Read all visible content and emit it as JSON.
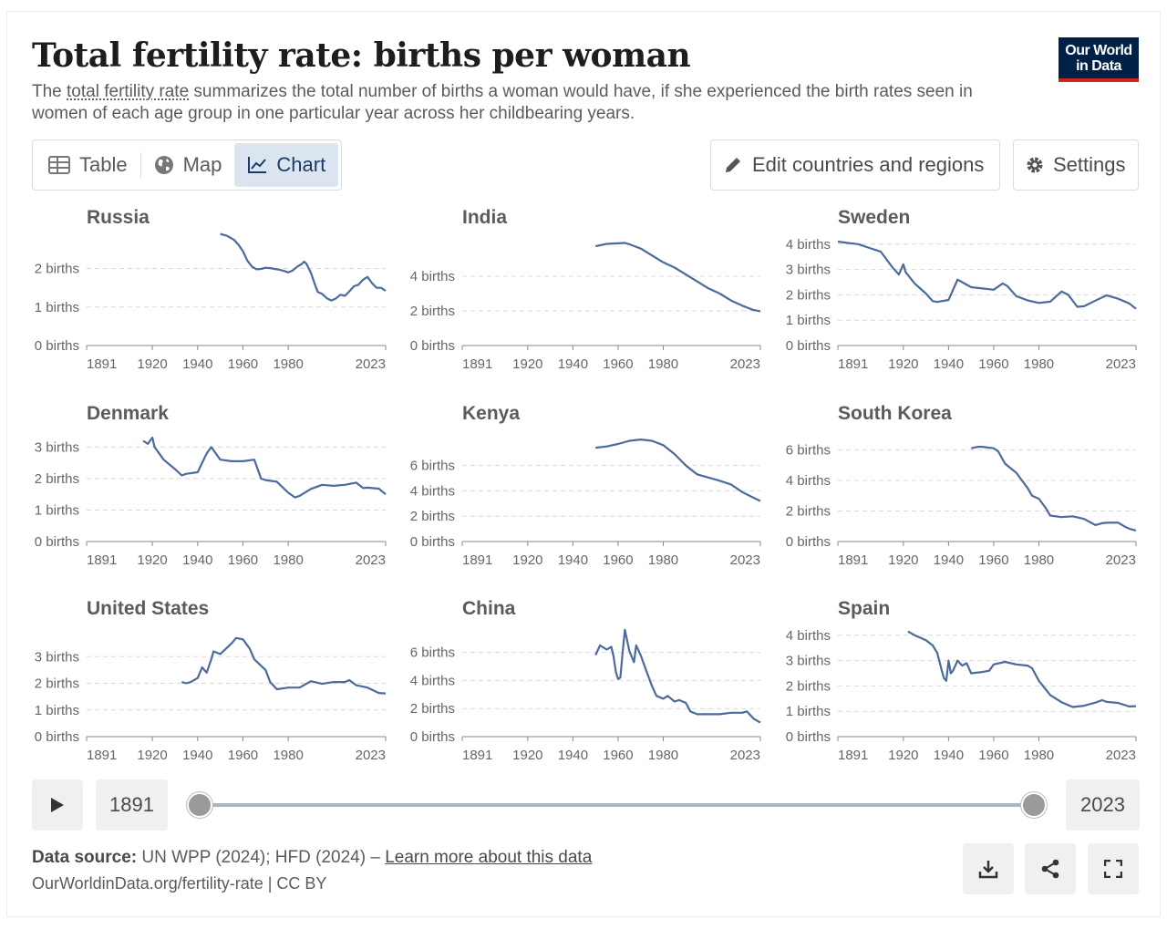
{
  "header": {
    "title": "Total fertility rate: births per woman",
    "subtitle_term": "total fertility rate",
    "subtitle_pre": "The ",
    "subtitle_rest": " summarizes the total number of births a woman would have, if she experienced the birth rates seen in women of each age group in one particular year across her childbearing years.",
    "logo_line1": "Our World",
    "logo_line2": "in Data"
  },
  "tabs": [
    {
      "label": "Table",
      "icon": "table-icon"
    },
    {
      "label": "Map",
      "icon": "globe-icon"
    },
    {
      "label": "Chart",
      "icon": "line-chart-icon",
      "active": true
    }
  ],
  "toolbar": {
    "edit_label": "Edit countries and regions",
    "settings_label": "Settings"
  },
  "timeline": {
    "start_year": "1891",
    "end_year": "2023",
    "range_start": 1891,
    "range_end": 2023
  },
  "footer": {
    "source_label": "Data source:",
    "source_text": "UN WPP (2024); HFD (2024) –",
    "learn_more": "Learn more about this data",
    "url_license": "OurWorldinData.org/fertility-rate | CC BY"
  },
  "colors": {
    "series": "#4c6a9c",
    "accent": "#dbe5f0",
    "logo_bg": "#002147",
    "logo_bar": "#ce261e"
  },
  "chart_data": {
    "type": "line",
    "layout": "small-multiples",
    "x_ticks": [
      "1891",
      "1920",
      "1940",
      "1960",
      "1980",
      "2023"
    ],
    "xlim": [
      1891,
      2023
    ],
    "unit": "births",
    "panels": [
      {
        "name": "Russia",
        "ylim": [
          0,
          2.7
        ],
        "yticks": [
          0,
          1,
          2
        ],
        "x": [
          1950,
          1953,
          1956,
          1958,
          1960,
          1962,
          1964,
          1966,
          1968,
          1970,
          1972,
          1974,
          1976,
          1978,
          1980,
          1982,
          1984,
          1986,
          1987,
          1988,
          1990,
          1992,
          1993,
          1995,
          1997,
          1999,
          2001,
          2003,
          2005,
          2007,
          2009,
          2011,
          2013,
          2015,
          2017,
          2019,
          2021,
          2023
        ],
        "y": [
          2.9,
          2.85,
          2.75,
          2.62,
          2.45,
          2.2,
          2.05,
          1.98,
          1.99,
          2.02,
          2.01,
          1.99,
          1.97,
          1.94,
          1.9,
          1.95,
          2.05,
          2.12,
          2.18,
          2.13,
          1.89,
          1.55,
          1.39,
          1.34,
          1.23,
          1.17,
          1.22,
          1.32,
          1.29,
          1.41,
          1.54,
          1.58,
          1.71,
          1.78,
          1.62,
          1.5,
          1.5,
          1.42
        ]
      },
      {
        "name": "India",
        "ylim": [
          0,
          6
        ],
        "yticks": [
          0,
          2,
          4
        ],
        "x": [
          1950,
          1955,
          1960,
          1963,
          1965,
          1970,
          1975,
          1980,
          1985,
          1990,
          1995,
          2000,
          2005,
          2010,
          2015,
          2020,
          2023
        ],
        "y": [
          5.73,
          5.87,
          5.9,
          5.92,
          5.85,
          5.6,
          5.2,
          4.8,
          4.5,
          4.1,
          3.7,
          3.3,
          3.0,
          2.6,
          2.3,
          2.05,
          1.98
        ]
      },
      {
        "name": "Sweden",
        "ylim": [
          0,
          4.1
        ],
        "yticks": [
          0,
          1,
          2,
          3,
          4
        ],
        "x": [
          1891,
          1895,
          1900,
          1905,
          1910,
          1915,
          1918,
          1920,
          1921,
          1925,
          1930,
          1933,
          1935,
          1940,
          1944,
          1946,
          1950,
          1955,
          1960,
          1964,
          1966,
          1970,
          1975,
          1980,
          1985,
          1990,
          1993,
          1997,
          2000,
          2005,
          2010,
          2015,
          2020,
          2023
        ],
        "y": [
          4.1,
          4.05,
          4.0,
          3.85,
          3.7,
          3.1,
          2.8,
          3.2,
          2.9,
          2.45,
          2.05,
          1.75,
          1.72,
          1.8,
          2.6,
          2.5,
          2.3,
          2.25,
          2.2,
          2.45,
          2.35,
          1.95,
          1.78,
          1.68,
          1.73,
          2.13,
          2.0,
          1.53,
          1.55,
          1.77,
          1.98,
          1.85,
          1.66,
          1.45
        ]
      },
      {
        "name": "Denmark",
        "ylim": [
          0,
          3.3
        ],
        "yticks": [
          0,
          1,
          2,
          3
        ],
        "x": [
          1916,
          1918,
          1920,
          1921,
          1925,
          1930,
          1933,
          1935,
          1940,
          1944,
          1946,
          1950,
          1955,
          1960,
          1965,
          1966,
          1968,
          1970,
          1975,
          1980,
          1983,
          1985,
          1990,
          1995,
          2000,
          2005,
          2010,
          2013,
          2015,
          2020,
          2023
        ],
        "y": [
          3.2,
          3.1,
          3.3,
          3.0,
          2.6,
          2.3,
          2.1,
          2.15,
          2.2,
          2.8,
          3.0,
          2.6,
          2.55,
          2.55,
          2.6,
          2.4,
          2.0,
          1.95,
          1.9,
          1.55,
          1.4,
          1.45,
          1.67,
          1.8,
          1.77,
          1.8,
          1.87,
          1.7,
          1.71,
          1.68,
          1.5
        ]
      },
      {
        "name": "Kenya",
        "ylim": [
          0,
          8.2
        ],
        "yticks": [
          0,
          2,
          4,
          6
        ],
        "x": [
          1950,
          1955,
          1960,
          1965,
          1970,
          1975,
          1980,
          1985,
          1990,
          1995,
          2000,
          2005,
          2010,
          2015,
          2020,
          2023
        ],
        "y": [
          7.4,
          7.5,
          7.7,
          7.95,
          8.05,
          7.95,
          7.6,
          6.9,
          6.0,
          5.3,
          5.05,
          4.8,
          4.5,
          3.9,
          3.45,
          3.2
        ]
      },
      {
        "name": "South Korea",
        "ylim": [
          0,
          6.8
        ],
        "yticks": [
          0,
          2,
          4,
          6
        ],
        "x": [
          1950,
          1953,
          1955,
          1960,
          1962,
          1965,
          1970,
          1975,
          1977,
          1980,
          1983,
          1985,
          1990,
          1995,
          2000,
          2005,
          2008,
          2010,
          2015,
          2018,
          2020,
          2023
        ],
        "y": [
          6.1,
          6.2,
          6.2,
          6.1,
          5.9,
          5.1,
          4.5,
          3.5,
          3.0,
          2.8,
          2.2,
          1.7,
          1.6,
          1.65,
          1.48,
          1.08,
          1.2,
          1.23,
          1.24,
          0.98,
          0.84,
          0.72
        ]
      },
      {
        "name": "United States",
        "ylim": [
          0,
          3.9
        ],
        "yticks": [
          0,
          1,
          2,
          3
        ],
        "x": [
          1933,
          1935,
          1937,
          1940,
          1942,
          1944,
          1946,
          1947,
          1950,
          1955,
          1957,
          1960,
          1963,
          1965,
          1970,
          1972,
          1975,
          1980,
          1985,
          1990,
          1995,
          2000,
          2005,
          2007,
          2010,
          2015,
          2020,
          2023
        ],
        "y": [
          2.05,
          2.0,
          2.05,
          2.2,
          2.6,
          2.4,
          2.9,
          3.2,
          3.1,
          3.5,
          3.7,
          3.65,
          3.3,
          2.9,
          2.5,
          2.05,
          1.78,
          1.84,
          1.84,
          2.08,
          1.98,
          2.05,
          2.05,
          2.12,
          1.93,
          1.84,
          1.64,
          1.62
        ]
      },
      {
        "name": "China",
        "ylim": [
          0,
          7.4
        ],
        "yticks": [
          0,
          2,
          4,
          6
        ],
        "x": [
          1950,
          1952,
          1955,
          1957,
          1958,
          1959,
          1960,
          1961,
          1962,
          1963,
          1965,
          1967,
          1968,
          1970,
          1972,
          1975,
          1977,
          1980,
          1982,
          1985,
          1987,
          1990,
          1992,
          1995,
          2000,
          2005,
          2010,
          2015,
          2017,
          2020,
          2023
        ],
        "y": [
          5.8,
          6.5,
          6.2,
          6.4,
          5.7,
          4.6,
          4.1,
          4.2,
          6.0,
          7.6,
          6.1,
          5.3,
          6.5,
          5.8,
          4.9,
          3.6,
          2.9,
          2.7,
          2.9,
          2.5,
          2.6,
          2.4,
          1.8,
          1.6,
          1.6,
          1.6,
          1.7,
          1.7,
          1.8,
          1.28,
          1.0
        ]
      },
      {
        "name": "Spain",
        "ylim": [
          0,
          4.1
        ],
        "yticks": [
          0,
          1,
          2,
          3,
          4
        ],
        "x": [
          1922,
          1925,
          1930,
          1933,
          1935,
          1937,
          1938,
          1939,
          1940,
          1941,
          1942,
          1944,
          1946,
          1948,
          1950,
          1955,
          1958,
          1960,
          1965,
          1970,
          1975,
          1977,
          1980,
          1985,
          1990,
          1995,
          2000,
          2005,
          2008,
          2010,
          2015,
          2020,
          2023
        ],
        "y": [
          4.15,
          4.0,
          3.8,
          3.6,
          3.3,
          2.6,
          2.3,
          2.2,
          3.0,
          2.5,
          2.6,
          3.0,
          2.8,
          2.9,
          2.5,
          2.55,
          2.6,
          2.85,
          2.95,
          2.85,
          2.8,
          2.7,
          2.2,
          1.64,
          1.36,
          1.17,
          1.22,
          1.34,
          1.44,
          1.37,
          1.33,
          1.19,
          1.2
        ]
      }
    ]
  }
}
